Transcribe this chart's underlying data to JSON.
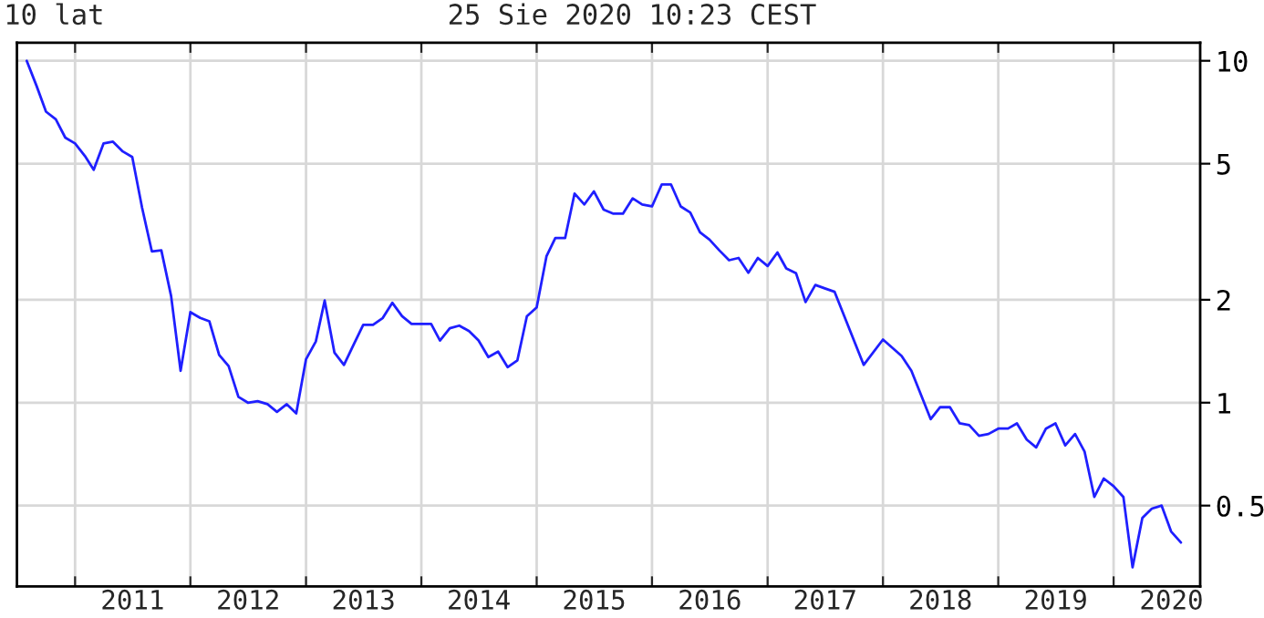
{
  "chart_data": {
    "type": "line",
    "title": "10 lat",
    "subtitle": "25 Sie 2020 10:23 CEST",
    "x": [
      "2010-08",
      "2010-09",
      "2010-10",
      "2010-11",
      "2010-12",
      "2011-01",
      "2011-02",
      "2011-03",
      "2011-04",
      "2011-05",
      "2011-06",
      "2011-07",
      "2011-08",
      "2011-09",
      "2011-10",
      "2011-11",
      "2011-12",
      "2012-01",
      "2012-02",
      "2012-03",
      "2012-04",
      "2012-05",
      "2012-06",
      "2012-07",
      "2012-08",
      "2012-09",
      "2012-10",
      "2012-11",
      "2012-12",
      "2013-01",
      "2013-02",
      "2013-03",
      "2013-04",
      "2013-05",
      "2013-06",
      "2013-07",
      "2013-08",
      "2013-09",
      "2013-10",
      "2013-11",
      "2013-12",
      "2014-01",
      "2014-02",
      "2014-03",
      "2014-04",
      "2014-05",
      "2014-06",
      "2014-07",
      "2014-08",
      "2014-09",
      "2014-10",
      "2014-11",
      "2014-12",
      "2015-01",
      "2015-02",
      "2015-03",
      "2015-04",
      "2015-05",
      "2015-06",
      "2015-07",
      "2015-08",
      "2015-09",
      "2015-10",
      "2015-11",
      "2015-12",
      "2016-01",
      "2016-02",
      "2016-03",
      "2016-04",
      "2016-05",
      "2016-06",
      "2016-07",
      "2016-08",
      "2016-09",
      "2016-10",
      "2016-11",
      "2016-12",
      "2017-01",
      "2017-02",
      "2017-03",
      "2017-04",
      "2017-05",
      "2017-06",
      "2017-07",
      "2017-08",
      "2017-11",
      "2018-01",
      "2018-03",
      "2018-04",
      "2018-06",
      "2018-07",
      "2018-08",
      "2018-09",
      "2018-10",
      "2018-11",
      "2018-12",
      "2019-01",
      "2019-02",
      "2019-03",
      "2019-04",
      "2019-05",
      "2019-06",
      "2019-07",
      "2019-08",
      "2019-09",
      "2019-10",
      "2019-11",
      "2019-12",
      "2020-01",
      "2020-02",
      "2020-03",
      "2020-04",
      "2020-05",
      "2020-06",
      "2020-07",
      "2020-08"
    ],
    "series": [
      {
        "color": "#1f1fff",
        "values": [
          10,
          8.45,
          7.1,
          6.74,
          5.96,
          5.73,
          5.27,
          4.8,
          5.73,
          5.8,
          5.43,
          5.23,
          3.72,
          2.77,
          2.79,
          2.05,
          1.24,
          1.84,
          1.77,
          1.73,
          1.38,
          1.28,
          1.04,
          1.0,
          1.01,
          0.99,
          0.94,
          0.99,
          0.93,
          1.34,
          1.51,
          1.99,
          1.4,
          1.29,
          1.48,
          1.69,
          1.69,
          1.77,
          1.96,
          1.79,
          1.7,
          1.7,
          1.7,
          1.52,
          1.65,
          1.68,
          1.62,
          1.52,
          1.36,
          1.41,
          1.27,
          1.33,
          1.79,
          1.9,
          2.68,
          3.03,
          3.03,
          4.09,
          3.8,
          4.15,
          3.67,
          3.57,
          3.57,
          3.96,
          3.8,
          3.75,
          4.35,
          4.35,
          3.75,
          3.6,
          3.15,
          3.0,
          2.79,
          2.61,
          2.65,
          2.4,
          2.65,
          2.51,
          2.75,
          2.47,
          2.39,
          1.97,
          2.21,
          2.16,
          2.11,
          1.29,
          1.53,
          1.37,
          1.24,
          0.895,
          0.97,
          0.97,
          0.87,
          0.86,
          0.8,
          0.81,
          0.84,
          0.84,
          0.87,
          0.78,
          0.74,
          0.84,
          0.87,
          0.75,
          0.81,
          0.72,
          0.53,
          0.6,
          0.57,
          0.53,
          0.33,
          0.46,
          0.49,
          0.5,
          0.42,
          0.39
        ]
      }
    ],
    "log": true,
    "ylim": [
      0.29,
      11.3
    ],
    "yticks": [
      0.5,
      1,
      2,
      5,
      10
    ],
    "xlim": [
      "2010-07-01",
      "2020-10-01"
    ],
    "xticks": [
      {
        "value": "2011-01-01",
        "label": null
      },
      {
        "value": "2011-07-02",
        "label": "2011"
      },
      {
        "value": "2012-01-01",
        "label": null
      },
      {
        "value": "2012-07-02",
        "label": "2012"
      },
      {
        "value": "2013-01-01",
        "label": null
      },
      {
        "value": "2013-07-02",
        "label": "2013"
      },
      {
        "value": "2014-01-01",
        "label": null
      },
      {
        "value": "2014-07-02",
        "label": "2014"
      },
      {
        "value": "2015-01-01",
        "label": null
      },
      {
        "value": "2015-07-02",
        "label": "2015"
      },
      {
        "value": "2016-01-01",
        "label": null
      },
      {
        "value": "2016-07-02",
        "label": "2016"
      },
      {
        "value": "2017-01-01",
        "label": null
      },
      {
        "value": "2017-07-02",
        "label": "2017"
      },
      {
        "value": "2018-01-01",
        "label": null
      },
      {
        "value": "2018-07-02",
        "label": "2018"
      },
      {
        "value": "2019-01-01",
        "label": null
      },
      {
        "value": "2019-07-02",
        "label": "2019"
      },
      {
        "value": "2020-01-01",
        "label": null
      },
      {
        "value": "2020-07-02",
        "label": "2020"
      }
    ],
    "grid": true,
    "legend": false,
    "marker": "none",
    "line_style": "solid"
  }
}
